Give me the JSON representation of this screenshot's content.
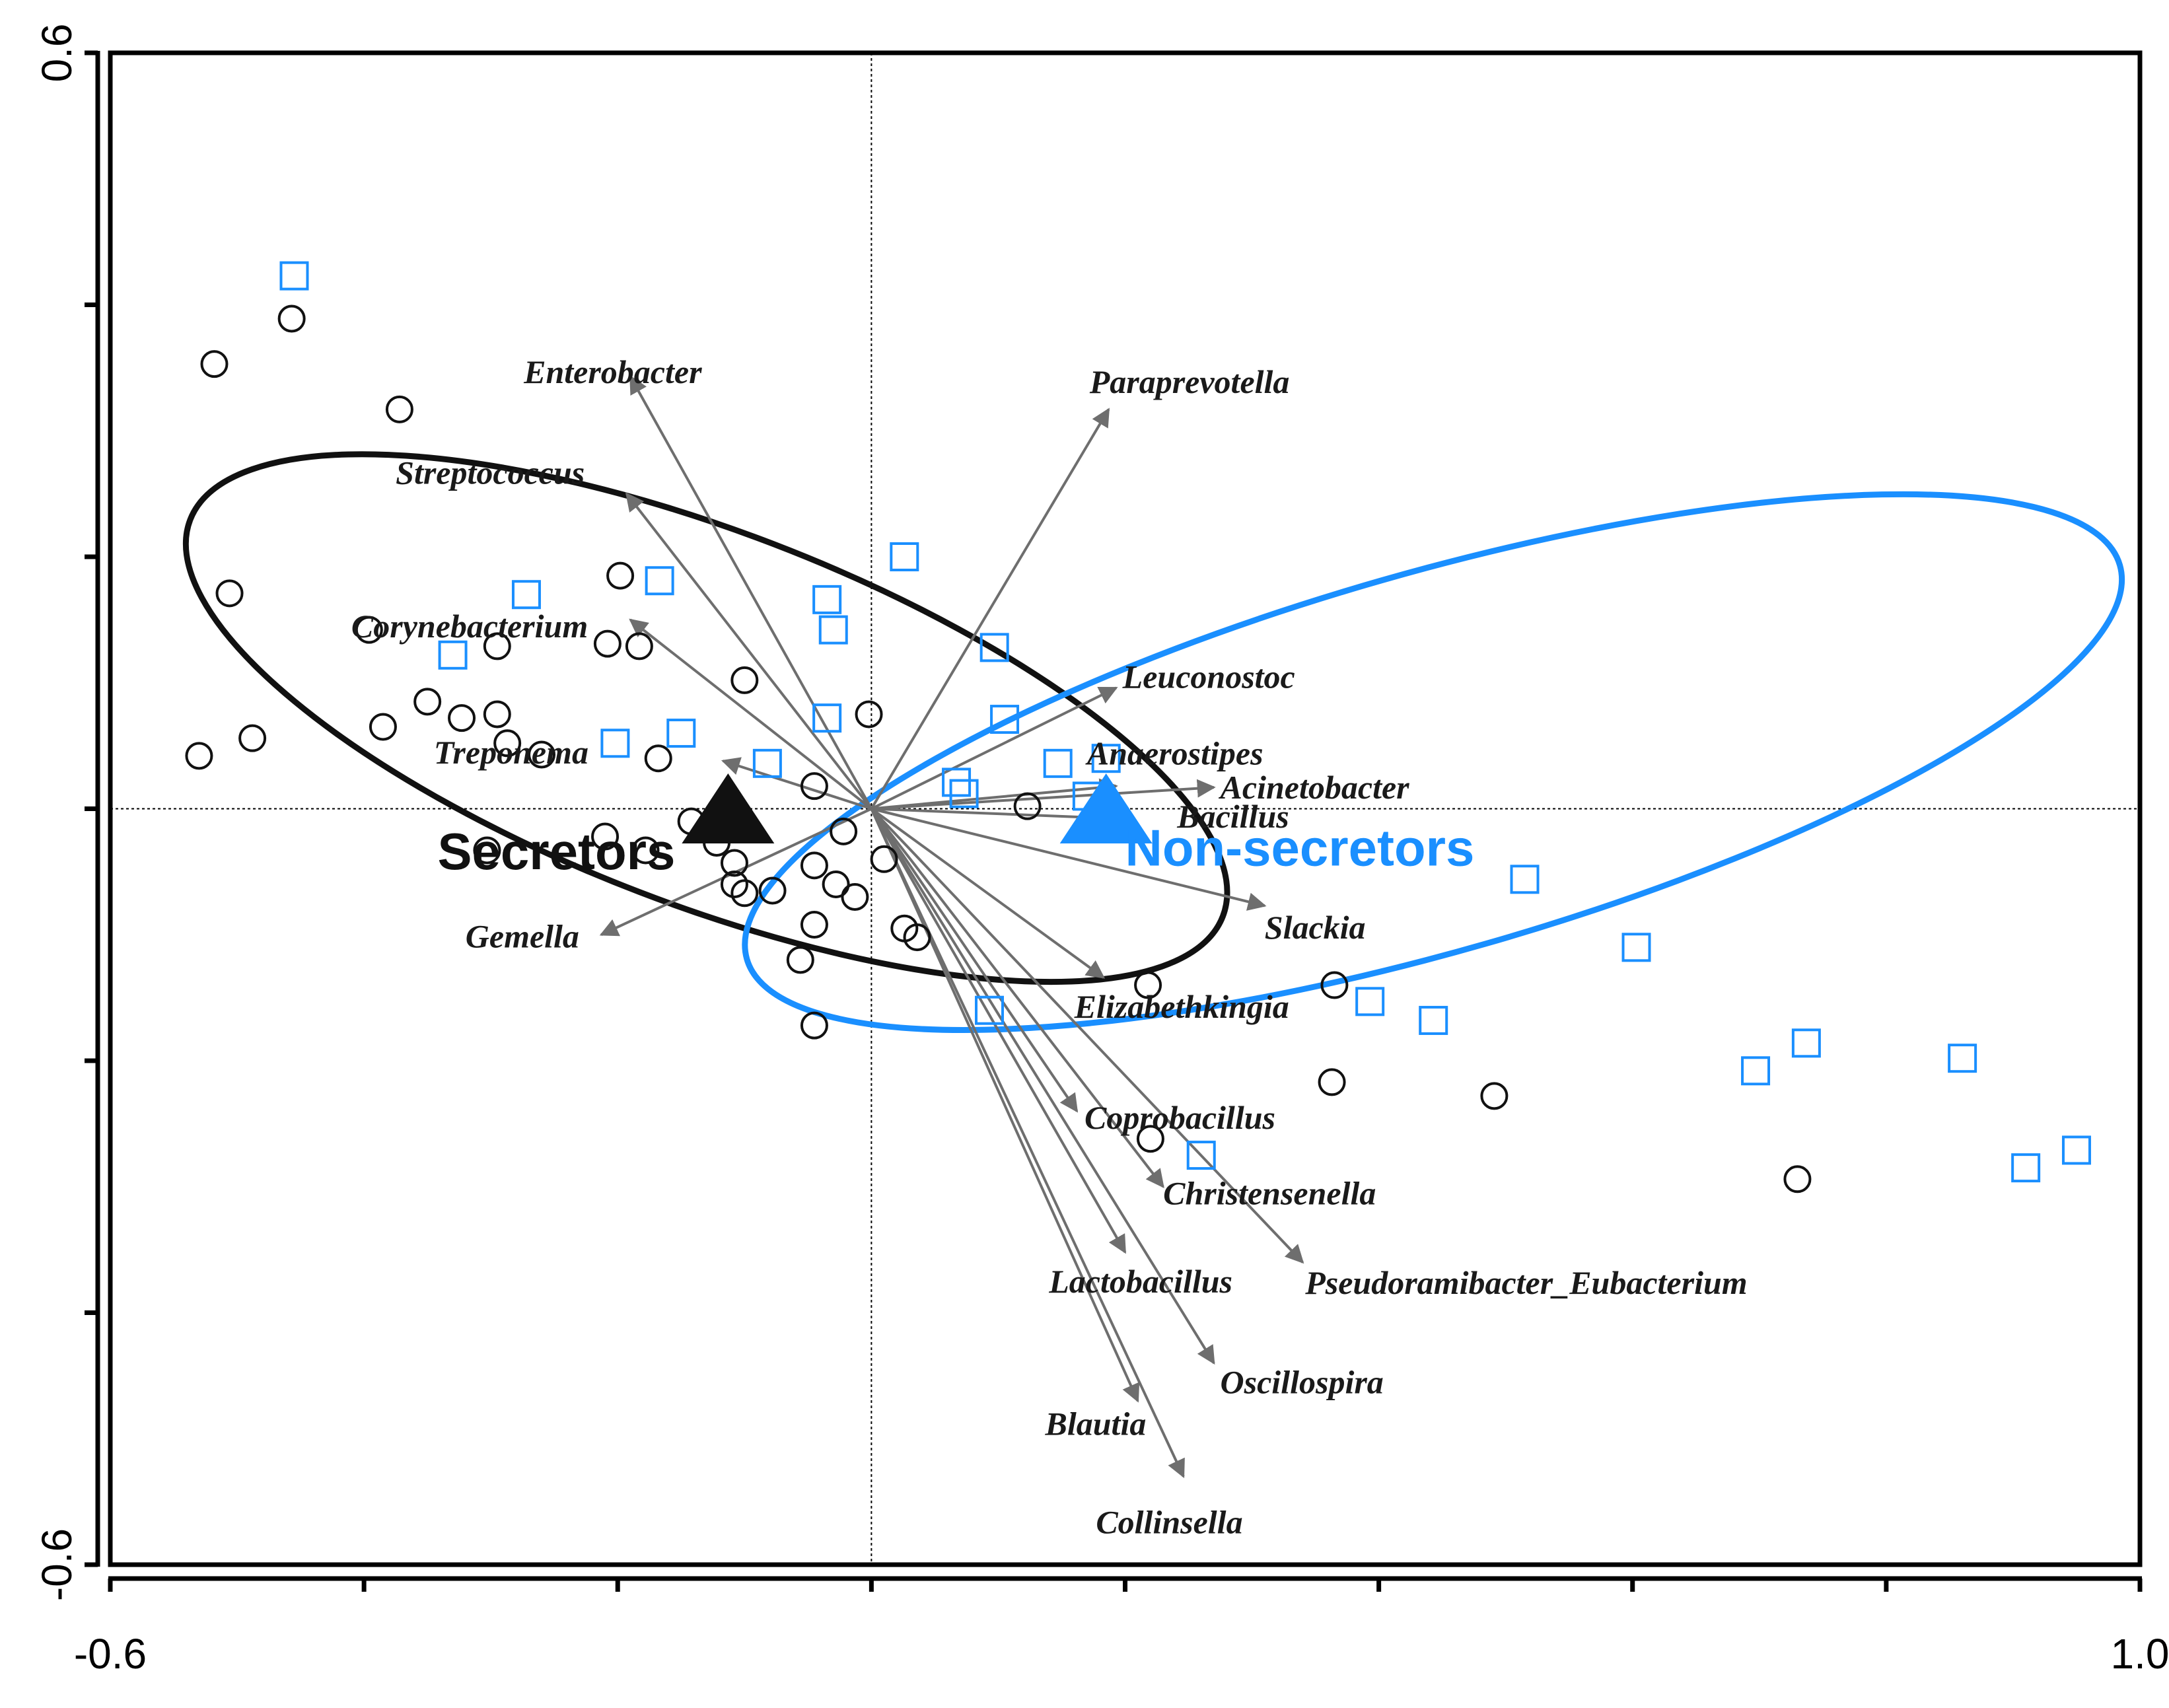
{
  "chart_data": {
    "type": "scatter",
    "subtype": "ordination biplot",
    "x_range": [
      -0.6,
      1.0
    ],
    "y_range": [
      -0.6,
      0.6
    ],
    "x_ticks": [
      -0.6,
      -0.4,
      -0.2,
      0.0,
      0.2,
      0.4,
      0.6,
      0.8,
      1.0
    ],
    "y_ticks": [
      -0.6,
      -0.4,
      -0.2,
      0.0,
      0.2,
      0.4,
      0.6
    ],
    "x_tick_labels": [
      {
        "value": -0.6,
        "text": "-0.6"
      },
      {
        "value": 1.0,
        "text": "1.0"
      }
    ],
    "y_tick_labels": [
      {
        "value": 0.6,
        "text": "0.6"
      },
      {
        "value": -0.6,
        "text": "-0.6"
      }
    ],
    "reference_lines": {
      "x": 0,
      "y": 0,
      "style": "dotted"
    },
    "colors": {
      "secretors": "#111111",
      "non_secretors": "#1a8fff",
      "arrows": "#6e6e6e",
      "axis": "#000000"
    },
    "groups": [
      {
        "name": "Secretors",
        "color": "#111111",
        "marker": "circle",
        "centroid": [
          -0.113,
          0.0
        ],
        "ellipse": {
          "cx": -0.13,
          "cy": 0.072,
          "rx": 0.436,
          "ry": 0.148,
          "angle_deg": 21
        },
        "points": [
          [
            -0.518,
            0.353
          ],
          [
            -0.457,
            0.389
          ],
          [
            -0.372,
            0.317
          ],
          [
            -0.506,
            0.171
          ],
          [
            -0.396,
            0.142
          ],
          [
            -0.295,
            0.129
          ],
          [
            -0.488,
            0.056
          ],
          [
            -0.53,
            0.042
          ],
          [
            -0.35,
            0.085
          ],
          [
            -0.385,
            0.065
          ],
          [
            -0.323,
            0.072
          ],
          [
            -0.295,
            0.075
          ],
          [
            -0.287,
            0.052
          ],
          [
            -0.26,
            0.043
          ],
          [
            -0.198,
            0.185
          ],
          [
            -0.183,
            0.129
          ],
          [
            -0.168,
            0.04
          ],
          [
            -0.1,
            0.102
          ],
          [
            -0.002,
            0.075
          ],
          [
            -0.045,
            0.018
          ],
          [
            0.123,
            0.002
          ],
          [
            -0.303,
            -0.033
          ],
          [
            -0.21,
            -0.022
          ],
          [
            -0.178,
            -0.033
          ],
          [
            -0.142,
            -0.01
          ],
          [
            -0.122,
            -0.027
          ],
          [
            -0.108,
            -0.043
          ],
          [
            -0.108,
            -0.06
          ],
          [
            -0.1,
            -0.067
          ],
          [
            -0.078,
            -0.065
          ],
          [
            -0.045,
            -0.045
          ],
          [
            -0.028,
            -0.06
          ],
          [
            -0.013,
            -0.07
          ],
          [
            -0.022,
            -0.018
          ],
          [
            0.01,
            -0.04
          ],
          [
            -0.045,
            -0.092
          ],
          [
            0.026,
            -0.095
          ],
          [
            0.036,
            -0.102
          ],
          [
            -0.056,
            -0.12
          ],
          [
            -0.045,
            -0.172
          ],
          [
            0.218,
            -0.14
          ],
          [
            0.365,
            -0.14
          ],
          [
            0.363,
            -0.217
          ],
          [
            0.491,
            -0.228
          ],
          [
            0.73,
            -0.294
          ],
          [
            0.22,
            -0.262
          ],
          [
            -0.208,
            0.131
          ]
        ]
      },
      {
        "name": "Non-secretors",
        "color": "#1a8fff",
        "marker": "square",
        "centroid": [
          0.185,
          0.0
        ],
        "ellipse": {
          "cx": 0.443,
          "cy": 0.037,
          "rx": 0.563,
          "ry": 0.15,
          "angle_deg": -16
        },
        "points": [
          [
            -0.455,
            0.423
          ],
          [
            -0.33,
            0.122
          ],
          [
            -0.272,
            0.17
          ],
          [
            -0.167,
            0.181
          ],
          [
            -0.202,
            0.052
          ],
          [
            -0.15,
            0.06
          ],
          [
            -0.082,
            0.036
          ],
          [
            -0.035,
            0.166
          ],
          [
            -0.03,
            0.142
          ],
          [
            -0.035,
            0.072
          ],
          [
            0.026,
            0.2
          ],
          [
            0.097,
            0.128
          ],
          [
            0.105,
            0.071
          ],
          [
            0.067,
            0.021
          ],
          [
            0.073,
            0.012
          ],
          [
            0.147,
            0.036
          ],
          [
            0.185,
            0.04
          ],
          [
            0.17,
            0.01
          ],
          [
            0.093,
            -0.16
          ],
          [
            0.26,
            -0.275
          ],
          [
            0.393,
            -0.153
          ],
          [
            0.443,
            -0.168
          ],
          [
            0.515,
            -0.056
          ],
          [
            0.603,
            -0.11
          ],
          [
            0.697,
            -0.208
          ],
          [
            0.737,
            -0.186
          ],
          [
            0.86,
            -0.198
          ],
          [
            0.91,
            -0.285
          ],
          [
            0.95,
            -0.271
          ]
        ]
      }
    ],
    "group_labels": [
      {
        "text": "Secretors",
        "x": -0.342,
        "y": -0.048,
        "color": "#111111"
      },
      {
        "text": "Non-secretors",
        "x": 0.2,
        "y": -0.045,
        "color": "#1a8fff"
      }
    ],
    "vectors": [
      {
        "name": "Enterobacter",
        "x": -0.19,
        "y": 0.343,
        "label_x": -0.274,
        "label_y": 0.338
      },
      {
        "name": "Paraprevotella",
        "x": 0.187,
        "y": 0.317,
        "label_x": 0.172,
        "label_y": 0.33
      },
      {
        "name": "Streptococcus",
        "x": -0.193,
        "y": 0.25,
        "label_x": -0.375,
        "label_y": 0.258
      },
      {
        "name": "Corynebacterium",
        "x": -0.19,
        "y": 0.15,
        "label_x": -0.41,
        "label_y": 0.136
      },
      {
        "name": "Leuconostoc",
        "x": 0.193,
        "y": 0.096,
        "label_x": 0.198,
        "label_y": 0.096
      },
      {
        "name": "Treponema",
        "x": -0.117,
        "y": 0.038,
        "label_x": -0.345,
        "label_y": 0.036
      },
      {
        "name": "Anaerostipes",
        "x": 0.193,
        "y": 0.018,
        "label_x": 0.17,
        "label_y": 0.035
      },
      {
        "name": "Acinetobacter",
        "x": 0.27,
        "y": 0.017,
        "label_x": 0.275,
        "label_y": 0.008
      },
      {
        "name": "Bacillus",
        "x": 0.2,
        "y": -0.008,
        "label_x": 0.241,
        "label_y": -0.015
      },
      {
        "name": "Gemella",
        "x": -0.213,
        "y": -0.1,
        "label_x": -0.32,
        "label_y": -0.11
      },
      {
        "name": "Slackia",
        "x": 0.31,
        "y": -0.077,
        "label_x": 0.31,
        "label_y": -0.103
      },
      {
        "name": "Elizabethkingia",
        "x": 0.183,
        "y": -0.134,
        "label_x": 0.16,
        "label_y": -0.166
      },
      {
        "name": "Coprobacillus",
        "x": 0.162,
        "y": -0.24,
        "label_x": 0.168,
        "label_y": -0.254
      },
      {
        "name": "Christensenella",
        "x": 0.23,
        "y": -0.3,
        "label_x": 0.23,
        "label_y": -0.314
      },
      {
        "name": "Lactobacillus",
        "x": 0.2,
        "y": -0.352,
        "label_x": 0.14,
        "label_y": -0.384
      },
      {
        "name": "Pseudoramibacter_Eubacterium",
        "x": 0.34,
        "y": -0.36,
        "label_x": 0.342,
        "label_y": -0.385
      },
      {
        "name": "Oscillospira",
        "x": 0.27,
        "y": -0.44,
        "label_x": 0.275,
        "label_y": -0.464
      },
      {
        "name": "Blautia",
        "x": 0.21,
        "y": -0.47,
        "label_x": 0.137,
        "label_y": -0.497
      },
      {
        "name": "Collinsella",
        "x": 0.246,
        "y": -0.53,
        "label_x": 0.177,
        "label_y": -0.575
      }
    ]
  }
}
